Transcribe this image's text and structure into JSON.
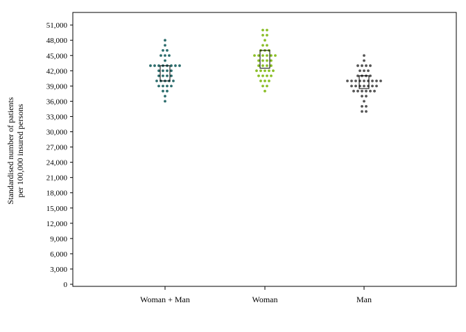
{
  "chart_data": {
    "type": "scatter",
    "subtype": "dot-strip-with-box",
    "ylabel_lines": [
      "Standardised number of patients",
      "per 100,000 insured persons"
    ],
    "xlabel": "",
    "ylim": [
      0,
      52000
    ],
    "yticks": [
      0,
      3000,
      6000,
      9000,
      12000,
      15000,
      18000,
      21000,
      24000,
      27000,
      30000,
      33000,
      36000,
      39000,
      42000,
      45000,
      48000,
      51000
    ],
    "ytick_labels": [
      "0",
      "3,000",
      "6,000",
      "9,000",
      "12,000",
      "15,000",
      "18,000",
      "21,000",
      "24,000",
      "27,000",
      "30,000",
      "33,000",
      "36,000",
      "39,000",
      "42,000",
      "45,000",
      "48,000",
      "51,000"
    ],
    "categories": [
      "Woman + Man",
      "Woman",
      "Man"
    ],
    "series": [
      {
        "category": "Woman + Man",
        "color": "#2e6e6e",
        "box": {
          "q1": 40000,
          "q3": 43000
        },
        "values": [
          36000,
          37000,
          38000,
          38000,
          39000,
          39000,
          39000,
          39000,
          40000,
          40000,
          40000,
          40000,
          40000,
          41000,
          41000,
          41000,
          41000,
          42000,
          42000,
          42000,
          42000,
          43000,
          43000,
          43000,
          43000,
          43000,
          43000,
          43000,
          43000,
          44000,
          45000,
          45000,
          45000,
          46000,
          46000,
          47000,
          48000
        ]
      },
      {
        "category": "Woman",
        "color": "#8cbf2a",
        "box": {
          "q1": 42500,
          "q3": 46000
        },
        "values": [
          38000,
          39000,
          39000,
          40000,
          40000,
          40000,
          41000,
          41000,
          41000,
          41000,
          42000,
          42000,
          42000,
          42000,
          42000,
          43000,
          43000,
          43000,
          43000,
          44000,
          44000,
          44000,
          44000,
          45000,
          45000,
          45000,
          45000,
          45000,
          45000,
          46000,
          46000,
          46000,
          47000,
          47000,
          48000,
          49000,
          49000,
          50000,
          50000
        ]
      },
      {
        "category": "Man",
        "color": "#555555",
        "box": {
          "q1": 38500,
          "q3": 41000
        },
        "values": [
          34000,
          34000,
          35000,
          35000,
          36000,
          37000,
          37000,
          38000,
          38000,
          38000,
          38000,
          38000,
          38000,
          39000,
          39000,
          39000,
          39000,
          39000,
          39000,
          39000,
          40000,
          40000,
          40000,
          40000,
          40000,
          40000,
          40000,
          40000,
          40000,
          41000,
          41000,
          41000,
          41000,
          42000,
          42000,
          42000,
          43000,
          43000,
          43000,
          43000,
          44000,
          45000
        ]
      }
    ]
  }
}
